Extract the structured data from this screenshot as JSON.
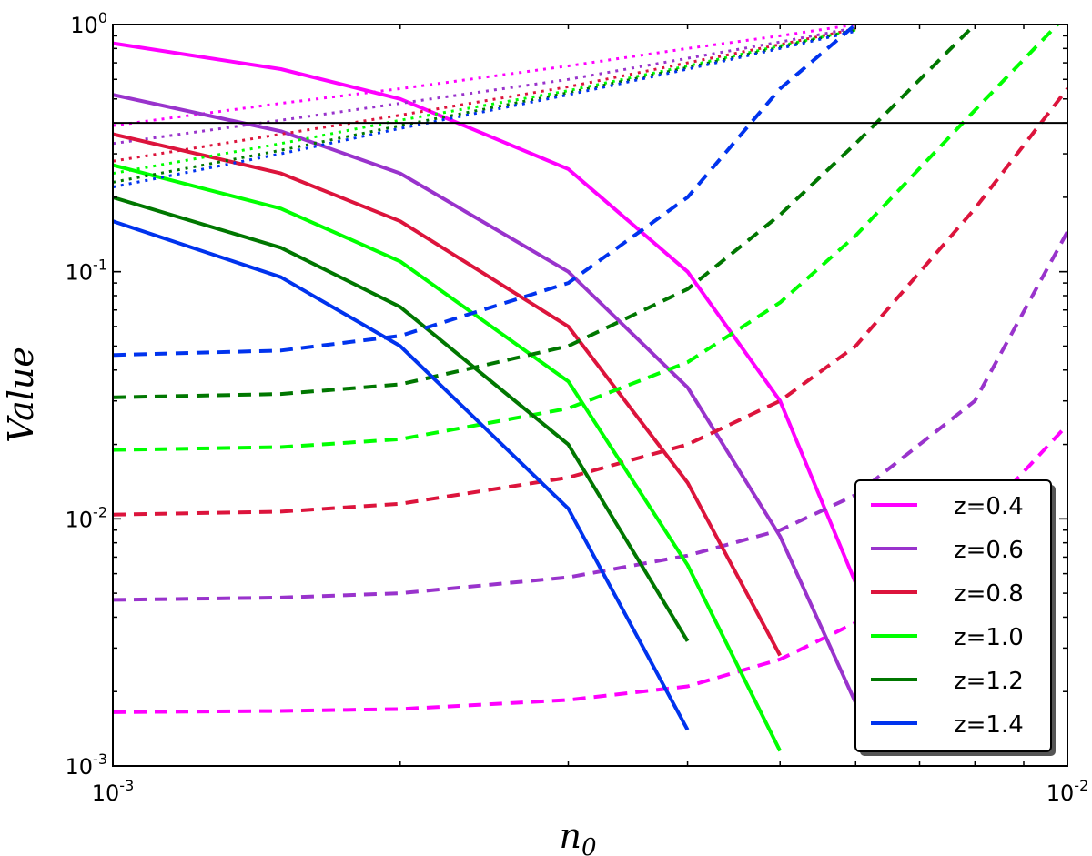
{
  "chart_data": {
    "type": "line",
    "x_scale": "log",
    "y_scale": "log",
    "xlim": [
      0.001,
      0.01
    ],
    "ylim": [
      0.001,
      1
    ],
    "xlabel": "n",
    "xlabel_sub": "0",
    "ylabel": "Value",
    "x_ticks": [
      {
        "value": 0.001,
        "base": "10",
        "exp": "-3"
      },
      {
        "value": 0.01,
        "base": "10",
        "exp": "-2"
      }
    ],
    "y_ticks": [
      {
        "value": 1,
        "base": "10",
        "exp": "0"
      },
      {
        "value": 0.1,
        "base": "10",
        "exp": "-1"
      },
      {
        "value": 0.01,
        "base": "10",
        "exp": "-2"
      },
      {
        "value": 0.001,
        "base": "10",
        "exp": "-3"
      }
    ],
    "hline": {
      "y": 0.4,
      "color": "#000000"
    },
    "legend_position": "lower-right",
    "x": [
      0.001,
      0.0015,
      0.002,
      0.003,
      0.004,
      0.005,
      0.006,
      0.008,
      0.01
    ],
    "series": [
      {
        "name": "z=0.4",
        "color": "#ff00ff",
        "solid": [
          0.84,
          0.66,
          0.5,
          0.26,
          0.1,
          0.03,
          0.0055,
          null,
          null
        ],
        "dashed": [
          0.00165,
          0.00167,
          0.0017,
          0.00185,
          0.0021,
          0.0027,
          0.0038,
          0.0095,
          0.024
        ],
        "dotted": [
          0.39,
          0.48,
          0.55,
          0.68,
          0.8,
          0.9,
          1.0,
          null,
          null
        ]
      },
      {
        "name": "z=0.6",
        "color": "#9933cc",
        "solid": [
          0.52,
          0.37,
          0.25,
          0.1,
          0.034,
          0.0085,
          0.0018,
          null,
          null
        ],
        "dashed": [
          0.0047,
          0.0048,
          0.005,
          0.0058,
          0.0071,
          0.009,
          0.0125,
          0.03,
          0.145
        ],
        "dotted": [
          0.33,
          0.41,
          0.48,
          0.6,
          0.73,
          0.85,
          0.97,
          null,
          null
        ]
      },
      {
        "name": "z=0.8",
        "color": "#dc143c",
        "solid": [
          0.36,
          0.25,
          0.16,
          0.06,
          0.014,
          0.0028,
          null,
          null,
          null
        ],
        "dashed": [
          0.0104,
          0.0107,
          0.0115,
          0.0147,
          0.02,
          0.03,
          0.05,
          0.18,
          0.55
        ],
        "dotted": [
          0.28,
          0.36,
          0.43,
          0.56,
          0.7,
          0.83,
          0.96,
          null,
          null
        ]
      },
      {
        "name": "z=1.0",
        "color": "#00ff00",
        "solid": [
          0.27,
          0.18,
          0.11,
          0.036,
          0.0065,
          0.00115,
          null,
          null,
          null
        ],
        "dashed": [
          0.019,
          0.0195,
          0.021,
          0.028,
          0.043,
          0.075,
          0.14,
          0.45,
          1.1
        ],
        "dotted": [
          0.25,
          0.33,
          0.41,
          0.54,
          0.68,
          0.82,
          0.95,
          null,
          null
        ]
      },
      {
        "name": "z=1.2",
        "color": "#007700",
        "solid": [
          0.2,
          0.125,
          0.072,
          0.02,
          0.0032,
          null,
          null,
          null,
          null
        ],
        "dashed": [
          0.031,
          0.032,
          0.035,
          0.05,
          0.085,
          0.17,
          0.33,
          1.0,
          null
        ],
        "dotted": [
          0.23,
          0.31,
          0.39,
          0.53,
          0.67,
          0.81,
          0.95,
          null,
          null
        ]
      },
      {
        "name": "z=1.4",
        "color": "#0033ee",
        "solid": [
          0.16,
          0.095,
          0.05,
          0.011,
          0.0014,
          null,
          null,
          null,
          null
        ],
        "dashed": [
          0.046,
          0.048,
          0.055,
          0.09,
          0.2,
          0.55,
          1.0,
          null,
          null
        ],
        "dotted": [
          0.22,
          0.3,
          0.38,
          0.52,
          0.66,
          0.8,
          0.94,
          null,
          null
        ]
      }
    ]
  }
}
